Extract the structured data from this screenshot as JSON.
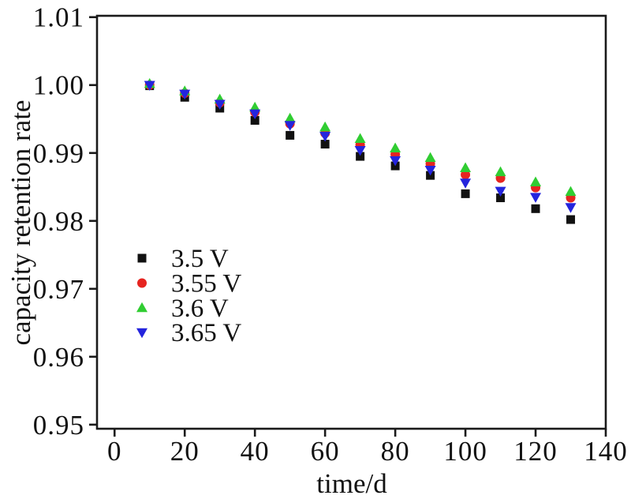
{
  "chart_data": {
    "type": "scatter",
    "title": "",
    "xlabel": "time/d",
    "ylabel": "capacity retention rate",
    "x": [
      10,
      20,
      30,
      40,
      50,
      60,
      70,
      80,
      90,
      100,
      110,
      120,
      130
    ],
    "series": [
      {
        "name": "3.5 V",
        "marker": "square",
        "color": "#111111",
        "values": [
          0.9999,
          0.9982,
          0.9966,
          0.9948,
          0.9926,
          0.9913,
          0.9895,
          0.9881,
          0.9867,
          0.984,
          0.9834,
          0.9818,
          0.9802
        ]
      },
      {
        "name": "3.55 V",
        "marker": "circle",
        "color": "#e62420",
        "values": [
          1.0,
          0.9988,
          0.9974,
          0.996,
          0.9943,
          0.9929,
          0.9912,
          0.9898,
          0.9884,
          0.9868,
          0.9863,
          0.9849,
          0.9834
        ]
      },
      {
        "name": "3.6 V",
        "marker": "triangle-up",
        "color": "#30cd32",
        "values": [
          1.0002,
          0.9991,
          0.9979,
          0.9967,
          0.9951,
          0.9938,
          0.9921,
          0.9907,
          0.9893,
          0.9878,
          0.9872,
          0.9857,
          0.9843
        ]
      },
      {
        "name": "3.65 V",
        "marker": "triangle-down",
        "color": "#2424dd",
        "values": [
          1.0,
          0.9987,
          0.9972,
          0.9958,
          0.9941,
          0.9925,
          0.9904,
          0.9889,
          0.9875,
          0.9856,
          0.9844,
          0.9835,
          0.982
        ]
      }
    ],
    "x_ticks": [
      0,
      20,
      40,
      60,
      80,
      100,
      120,
      140
    ],
    "x_tick_labels": [
      "0",
      "20",
      "40",
      "60",
      "80",
      "100",
      "120",
      "140"
    ],
    "y_ticks": [
      0.95,
      0.96,
      0.97,
      0.98,
      0.99,
      1.0,
      1.01
    ],
    "y_tick_labels": [
      "0.95",
      "0.96",
      "0.97",
      "0.98",
      "0.99",
      "1.00",
      "1.01"
    ],
    "xlim": [
      -5,
      140
    ],
    "ylim": [
      0.9494,
      1.0102
    ],
    "grid": false,
    "legend_position": "inside-lower-left",
    "axis_color": "#1a1a1a"
  }
}
